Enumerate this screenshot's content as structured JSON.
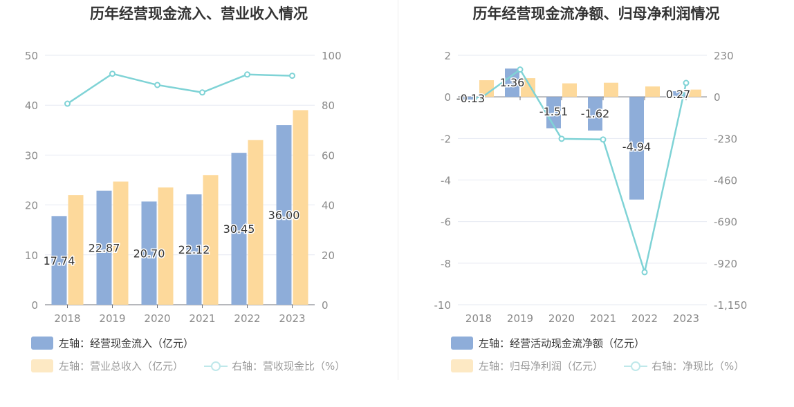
{
  "colors": {
    "cash_bar": "#8eadd9",
    "revenue_bar": "#fdd99b",
    "ratio_line": "#7fd3d6",
    "grid": "#e6e9f2",
    "axis_text": "#8a8a8a"
  },
  "chart_data": [
    {
      "type": "bar",
      "title": "历年经营现金流入、营业收入情况",
      "categories": [
        "2018",
        "2019",
        "2020",
        "2021",
        "2022",
        "2023"
      ],
      "left_axis": {
        "ylim": [
          0,
          50
        ],
        "ticks": [
          "0",
          "10",
          "20",
          "30",
          "40",
          "50"
        ]
      },
      "right_axis": {
        "ylim": [
          0,
          100
        ],
        "ticks": [
          "0",
          "20",
          "40",
          "60",
          "80",
          "100"
        ]
      },
      "series": [
        {
          "name": "左轴：经营现金流入（亿元）",
          "kind": "bar",
          "axis": "left",
          "values": [
            17.74,
            22.87,
            20.7,
            22.12,
            30.45,
            36.0
          ],
          "labels": [
            "17.74",
            "22.87",
            "20.70",
            "22.12",
            "30.45",
            "36.00"
          ]
        },
        {
          "name": "左轴：营业总收入（亿元）",
          "kind": "bar",
          "axis": "left",
          "values": [
            22.0,
            24.7,
            23.5,
            26.0,
            33.0,
            39.0
          ]
        },
        {
          "name": "右轴：营收现金比（%）",
          "kind": "line",
          "axis": "right",
          "values": [
            80.6,
            92.6,
            88.1,
            85.1,
            92.3,
            91.8
          ]
        }
      ],
      "legend_placement": "bottom-left"
    },
    {
      "type": "bar",
      "title": "历年经营现金流净额、归母净利润情况",
      "categories": [
        "2018",
        "2019",
        "2020",
        "2021",
        "2022",
        "2023"
      ],
      "left_axis": {
        "ylim": [
          -10,
          2
        ],
        "ticks": [
          "-10",
          "-8",
          "-6",
          "-4",
          "-2",
          "0",
          "2"
        ]
      },
      "right_axis": {
        "ylim": [
          -1150,
          230
        ],
        "ticks": [
          "-1,150",
          "-920",
          "-690",
          "-460",
          "-230",
          "0",
          "230"
        ]
      },
      "series": [
        {
          "name": "左轴：经营活动现金流净额（亿元）",
          "kind": "bar",
          "axis": "left",
          "values": [
            -0.13,
            1.36,
            -1.51,
            -1.62,
            -4.94,
            0.27
          ],
          "labels": [
            "-0.13",
            "1.36",
            "-1.51",
            "-1.62",
            "-4.94",
            "0.27"
          ]
        },
        {
          "name": "左轴：归母净利润（亿元）",
          "kind": "bar",
          "axis": "left",
          "values": [
            0.8,
            0.9,
            0.65,
            0.68,
            0.5,
            0.35
          ]
        },
        {
          "name": "右轴：净现比（%）",
          "kind": "line",
          "axis": "right",
          "values": [
            -16,
            151,
            -232,
            -236,
            -970,
            77
          ]
        }
      ],
      "legend_placement": "bottom-left"
    }
  ]
}
